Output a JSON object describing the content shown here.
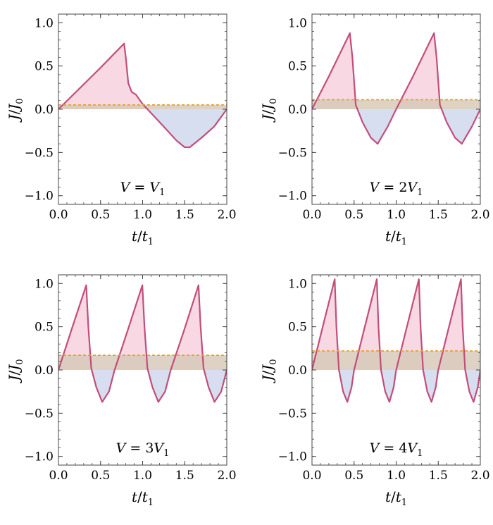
{
  "chart_data": [
    {
      "type": "line",
      "panel_label": "V = V1",
      "xlabel": "t/t1",
      "ylabel": "J/J0",
      "xlim": [
        0,
        2
      ],
      "ylim": [
        -1.1,
        1.1
      ],
      "xticks": [
        "0.0",
        "0.5",
        "1.0",
        "1.5",
        "2.0"
      ],
      "yticks": [
        "1.0",
        "0.5",
        "0.0",
        "-0.5",
        "-1.0"
      ],
      "series": [
        {
          "x": [
            0,
            0.25,
            0.5,
            0.7,
            0.78,
            0.8,
            0.83,
            0.87,
            0.92,
            1.0,
            1.25,
            1.4,
            1.5,
            1.56,
            1.7,
            1.85,
            2.0
          ],
          "values": [
            0,
            0.24,
            0.48,
            0.68,
            0.76,
            0.6,
            0.3,
            0.2,
            0.17,
            0.06,
            -0.2,
            -0.36,
            -0.44,
            -0.44,
            -0.33,
            -0.2,
            0
          ]
        }
      ],
      "average_line": 0.05,
      "colors": {
        "curve": "#c24e7a",
        "dashed": "#e8a030",
        "positive_fill": "#f4cbd9",
        "negative_fill": "#d6def0",
        "mean_fill": "#d7cab8"
      }
    },
    {
      "type": "line",
      "panel_label": "V = 2V1",
      "xlabel": "t/t1",
      "ylabel": "J/J0",
      "xlim": [
        0,
        2
      ],
      "ylim": [
        -1.1,
        1.1
      ],
      "xticks": [
        "0.0",
        "0.5",
        "1.0",
        "1.5",
        "2.0"
      ],
      "yticks": [
        "1.0",
        "0.5",
        "0.0",
        "-0.5",
        "-1.0"
      ],
      "series": [
        {
          "x": [
            0,
            0.2,
            0.45,
            0.48,
            0.52,
            0.6,
            0.7,
            0.78,
            0.9,
            1.0,
            1.2,
            1.45,
            1.48,
            1.52,
            1.6,
            1.7,
            1.78,
            1.9,
            2.0
          ],
          "values": [
            0,
            0.38,
            0.88,
            0.6,
            0.05,
            -0.15,
            -0.33,
            -0.4,
            -0.2,
            0,
            0.38,
            0.88,
            0.6,
            0.05,
            -0.15,
            -0.33,
            -0.4,
            -0.2,
            0
          ]
        }
      ],
      "average_line": 0.11,
      "colors": {
        "curve": "#c24e7a",
        "dashed": "#e8a030",
        "positive_fill": "#f4cbd9",
        "negative_fill": "#d6def0",
        "mean_fill": "#d7cab8"
      }
    },
    {
      "type": "line",
      "panel_label": "V = 3V1",
      "xlabel": "t/t1",
      "ylabel": "J/J0",
      "xlim": [
        0,
        2
      ],
      "ylim": [
        -1.1,
        1.1
      ],
      "xticks": [
        "0.0",
        "0.5",
        "1.0",
        "1.5",
        "2.0"
      ],
      "yticks": [
        "1.0",
        "0.5",
        "0.0",
        "-0.5",
        "-1.0"
      ],
      "series": [
        {
          "x": [
            0,
            0.15,
            0.33,
            0.355,
            0.39,
            0.45,
            0.52,
            0.6,
            0.667,
            0.82,
            0.997,
            1.022,
            1.057,
            1.117,
            1.187,
            1.267,
            1.334,
            1.49,
            1.664,
            1.689,
            1.724,
            1.784,
            1.854,
            1.934,
            2.0
          ],
          "values": [
            0,
            0.45,
            0.98,
            0.5,
            0.02,
            -0.2,
            -0.37,
            -0.25,
            0,
            0.45,
            0.98,
            0.5,
            0.02,
            -0.2,
            -0.37,
            -0.25,
            0,
            0.45,
            0.98,
            0.5,
            0.02,
            -0.2,
            -0.37,
            -0.25,
            0
          ]
        }
      ],
      "average_line": 0.17,
      "colors": {
        "curve": "#c24e7a",
        "dashed": "#e8a030",
        "positive_fill": "#f4cbd9",
        "negative_fill": "#d6def0",
        "mean_fill": "#d7cab8"
      }
    },
    {
      "type": "line",
      "panel_label": "V = 4V1",
      "xlabel": "t/t1",
      "ylabel": "J/J0",
      "xlim": [
        0,
        2
      ],
      "ylim": [
        -1.1,
        1.1
      ],
      "xticks": [
        "0.0",
        "0.5",
        "1.0",
        "1.5",
        "2.0"
      ],
      "yticks": [
        "1.0",
        "0.5",
        "0.0",
        "-0.5",
        "-1.0"
      ],
      "series": [
        {
          "x": [
            0,
            0.12,
            0.27,
            0.29,
            0.32,
            0.37,
            0.42,
            0.47,
            0.5,
            0.62,
            0.77,
            0.79,
            0.82,
            0.87,
            0.92,
            0.97,
            1.0,
            1.12,
            1.27,
            1.29,
            1.32,
            1.37,
            1.42,
            1.47,
            1.5,
            1.62,
            1.77,
            1.79,
            1.82,
            1.87,
            1.92,
            1.97,
            2.0
          ],
          "values": [
            0,
            0.47,
            1.05,
            0.5,
            0.0,
            -0.25,
            -0.37,
            -0.2,
            0,
            0.47,
            1.05,
            0.5,
            0.0,
            -0.25,
            -0.37,
            -0.2,
            0,
            0.47,
            1.05,
            0.5,
            0.0,
            -0.25,
            -0.37,
            -0.2,
            0,
            0.47,
            1.05,
            0.5,
            0.0,
            -0.25,
            -0.37,
            -0.2,
            0
          ]
        }
      ],
      "average_line": 0.22,
      "colors": {
        "curve": "#c24e7a",
        "dashed": "#e8a030",
        "positive_fill": "#f4cbd9",
        "negative_fill": "#d6def0",
        "mean_fill": "#d7cab8"
      }
    }
  ]
}
